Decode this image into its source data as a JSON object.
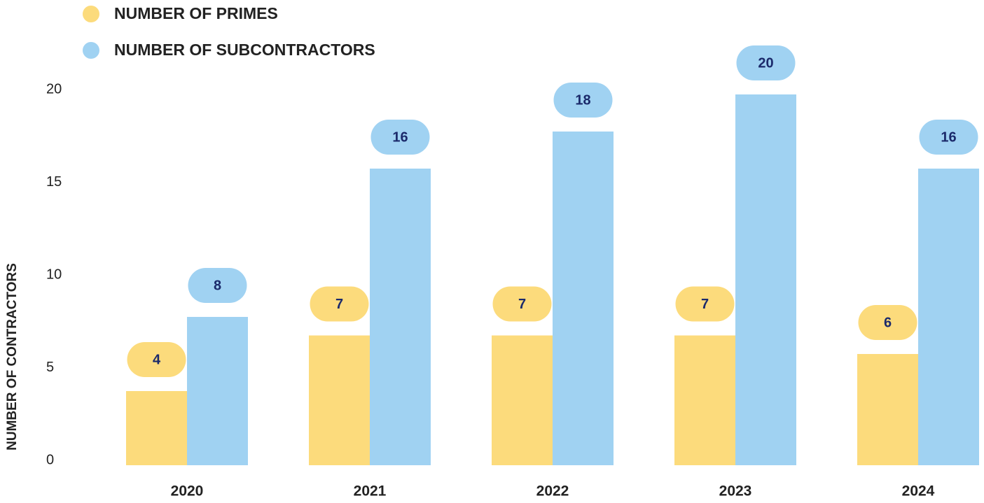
{
  "chart_data": {
    "type": "bar",
    "y_label": "NUMBER OF CONTRACTORS",
    "categories": [
      "2020",
      "2021",
      "2022",
      "2023",
      "2024"
    ],
    "series": [
      {
        "name": "NUMBER OF PRIMES",
        "color": "#fcdb7c",
        "values": [
          4,
          7,
          7,
          7,
          6
        ]
      },
      {
        "name": "NUMBER OF SUBCONTRACTORS",
        "color": "#a0d2f2",
        "values": [
          8,
          16,
          18,
          20,
          16
        ]
      }
    ],
    "ylim": [
      0,
      20
    ],
    "yticks": [
      0,
      5,
      10,
      15,
      20
    ],
    "grid": false,
    "label_color": "#1b2a6b"
  }
}
